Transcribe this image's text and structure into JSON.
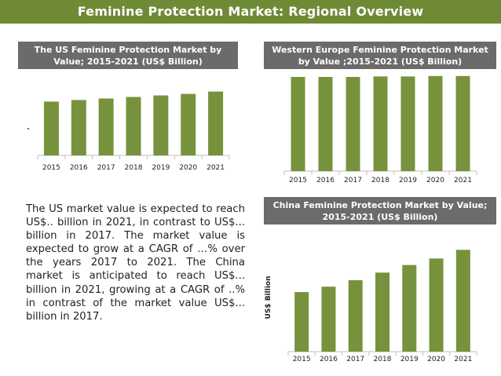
{
  "header": {
    "title": "Feminine Protection Market: Regional Overview"
  },
  "colors": {
    "banner": "#6f8a35",
    "bar": "#77923c",
    "title_bg": "#6b6b6b"
  },
  "chart_data": [
    {
      "id": "us",
      "type": "bar",
      "title": "The US Feminine Protection Market by Value; 2015-2021 (US$ Billion)",
      "categories": [
        "2015",
        "2016",
        "2017",
        "2018",
        "2019",
        "2020",
        "2021"
      ],
      "values": [
        70,
        72,
        74,
        76,
        78,
        80,
        83
      ],
      "ylim": [
        0,
        100
      ],
      "xlabel": "",
      "ylabel": ""
    },
    {
      "id": "weu",
      "type": "bar",
      "title": "Western Europe Feminine Protection Market by Value ;2015-2021 (US$ Billion)",
      "categories": [
        "2015",
        "2016",
        "2017",
        "2018",
        "2019",
        "2020",
        "2021"
      ],
      "values": [
        100,
        100,
        100,
        100.5,
        100.5,
        101,
        101
      ],
      "ylim": [
        0,
        105
      ],
      "xlabel": "",
      "ylabel": ""
    },
    {
      "id": "china",
      "type": "bar",
      "title": "China Feminine Protection Market by Value; 2015-2021 (US$ Billion)",
      "categories": [
        "2015",
        "2016",
        "2017",
        "2018",
        "2019",
        "2020",
        "2021"
      ],
      "values": [
        55,
        60,
        66,
        73,
        80,
        86,
        94
      ],
      "ylim": [
        0,
        100
      ],
      "xlabel": "",
      "ylabel": "US$ Billion"
    }
  ],
  "summary": {
    "text": "The US market value is expected to reach US$.. billion in 2021, in contrast to US$... billion in 2017. The market value is expected to grow at a CAGR of …% over the years 2017 to 2021. The China market is anticipated to reach US$... billion in 2021, growing at a CAGR of ..% in contrast of the market value US$... billion in 2017."
  }
}
